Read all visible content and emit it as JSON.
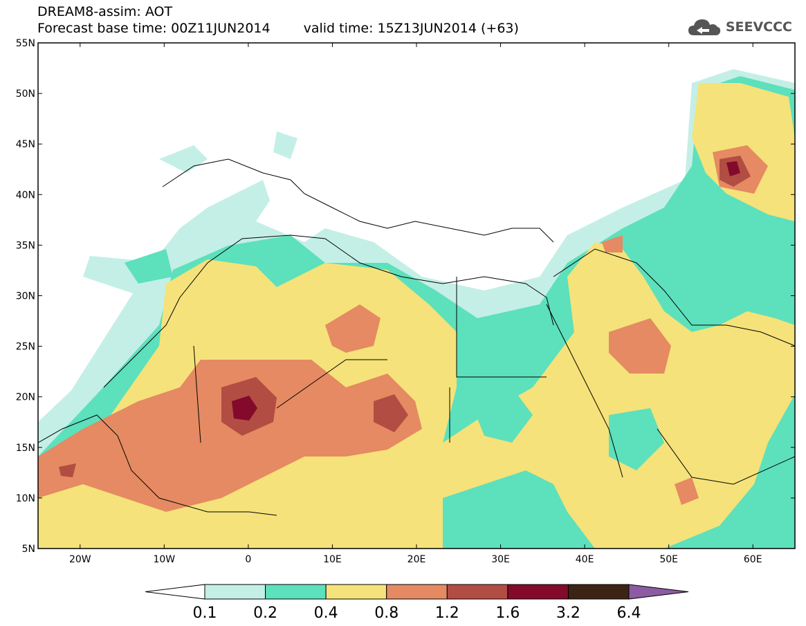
{
  "header": {
    "title": "DREAM8-assim: AOT",
    "base_time": "Forecast base time: 00Z11JUN2014",
    "valid_time": "valid time: 15Z13JUN2014 (+63)"
  },
  "logo": {
    "text": "SEEVCCC",
    "icon": "cloud-icon"
  },
  "map": {
    "lon_labels": [
      "20W",
      "10W",
      "0",
      "10E",
      "20E",
      "30E",
      "40E",
      "50E",
      "60E"
    ],
    "lat_labels": [
      "55N",
      "50N",
      "45N",
      "40N",
      "35N",
      "30N",
      "25N",
      "20N",
      "15N",
      "10N",
      "5N"
    ],
    "lon_range": [
      -25,
      65
    ],
    "lat_range": [
      5,
      55
    ]
  },
  "colorbar": {
    "labels": [
      "0.1",
      "0.2",
      "0.4",
      "0.8",
      "1.2",
      "1.6",
      "3.2",
      "6.4"
    ],
    "colors": [
      "#ffffff",
      "#c4efe6",
      "#5de0bc",
      "#f5e27a",
      "#e58a62",
      "#b24d43",
      "#830a2b",
      "#3c2415",
      "#8b5ca2"
    ]
  }
}
